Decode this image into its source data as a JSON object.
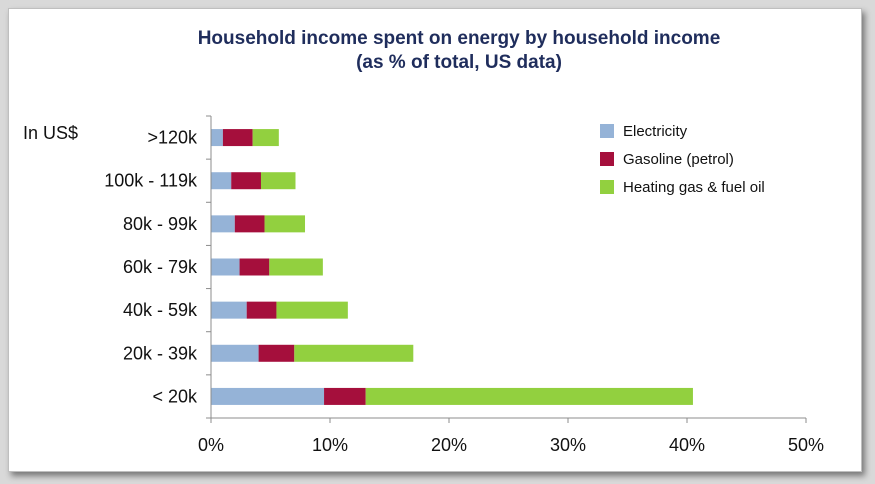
{
  "chart_data": {
    "type": "bar",
    "orientation": "horizontal",
    "stacked": true,
    "title": "Household income spent on energy by household income",
    "subtitle": "(as % of total, US data)",
    "unit_label": "In  US$",
    "categories": [
      ">120k",
      "100k - 119k",
      "80k - 99k",
      "60k - 79k",
      "40k - 59k",
      "20k - 39k",
      "< 20k"
    ],
    "series": [
      {
        "name": "Electricity",
        "color": "#95b3d7",
        "values": [
          1.0,
          1.7,
          2.0,
          2.4,
          3.0,
          4.0,
          9.5
        ]
      },
      {
        "name": "Gasoline (petrol)",
        "color": "#a50f3c",
        "values": [
          2.5,
          2.5,
          2.5,
          2.5,
          2.5,
          3.0,
          3.5
        ]
      },
      {
        "name": "Heating gas & fuel oil",
        "color": "#92d03f",
        "values": [
          2.2,
          2.9,
          3.4,
          4.5,
          6.0,
          10.0,
          27.5
        ]
      }
    ],
    "xlim": [
      0,
      50
    ],
    "x_ticks": [
      "0%",
      "10%",
      "20%",
      "30%",
      "40%",
      "50%"
    ],
    "grid": false,
    "legend_position": "top-right"
  }
}
